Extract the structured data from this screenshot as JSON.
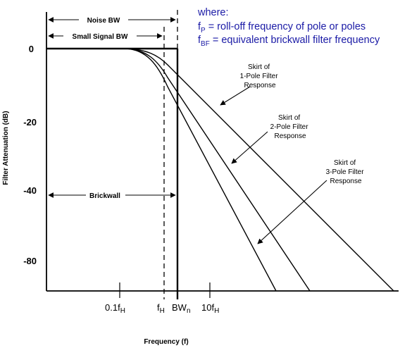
{
  "legend": {
    "heading": "where:",
    "line1": {
      "symbol": "f",
      "sub": "P",
      "text": " = roll-off frequency of pole or poles"
    },
    "line2": {
      "symbol": "f",
      "sub": "BF",
      "text": " = equivalent brickwall filter frequency"
    },
    "color": "#1a1aa6"
  },
  "bandwidth_labels": {
    "noise": "Noise BW",
    "small_signal": "Small Signal BW",
    "brickwall": "Brickwall"
  },
  "y_axis": {
    "title": "Filter Attenuation (dB)",
    "ticks": [
      "0",
      "-20",
      "-40",
      "-80"
    ]
  },
  "x_axis": {
    "title": "Frequency (f)",
    "ticks": [
      {
        "main": "0.1f",
        "sub": "H",
        "tail": ""
      },
      {
        "main": "f",
        "sub": "H",
        "tail": ""
      },
      {
        "main": "BW",
        "sub": "n",
        "tail": ""
      },
      {
        "main": "10f",
        "sub": "H",
        "tail": ""
      }
    ]
  },
  "annotations": {
    "pole1": [
      "Skirt of",
      "1-Pole Filter",
      "Response"
    ],
    "pole2": [
      "Skirt of",
      "2-Pole Filter",
      "Response"
    ],
    "pole3": [
      "Skirt of",
      "3-Pole Filter",
      "Response"
    ]
  }
}
